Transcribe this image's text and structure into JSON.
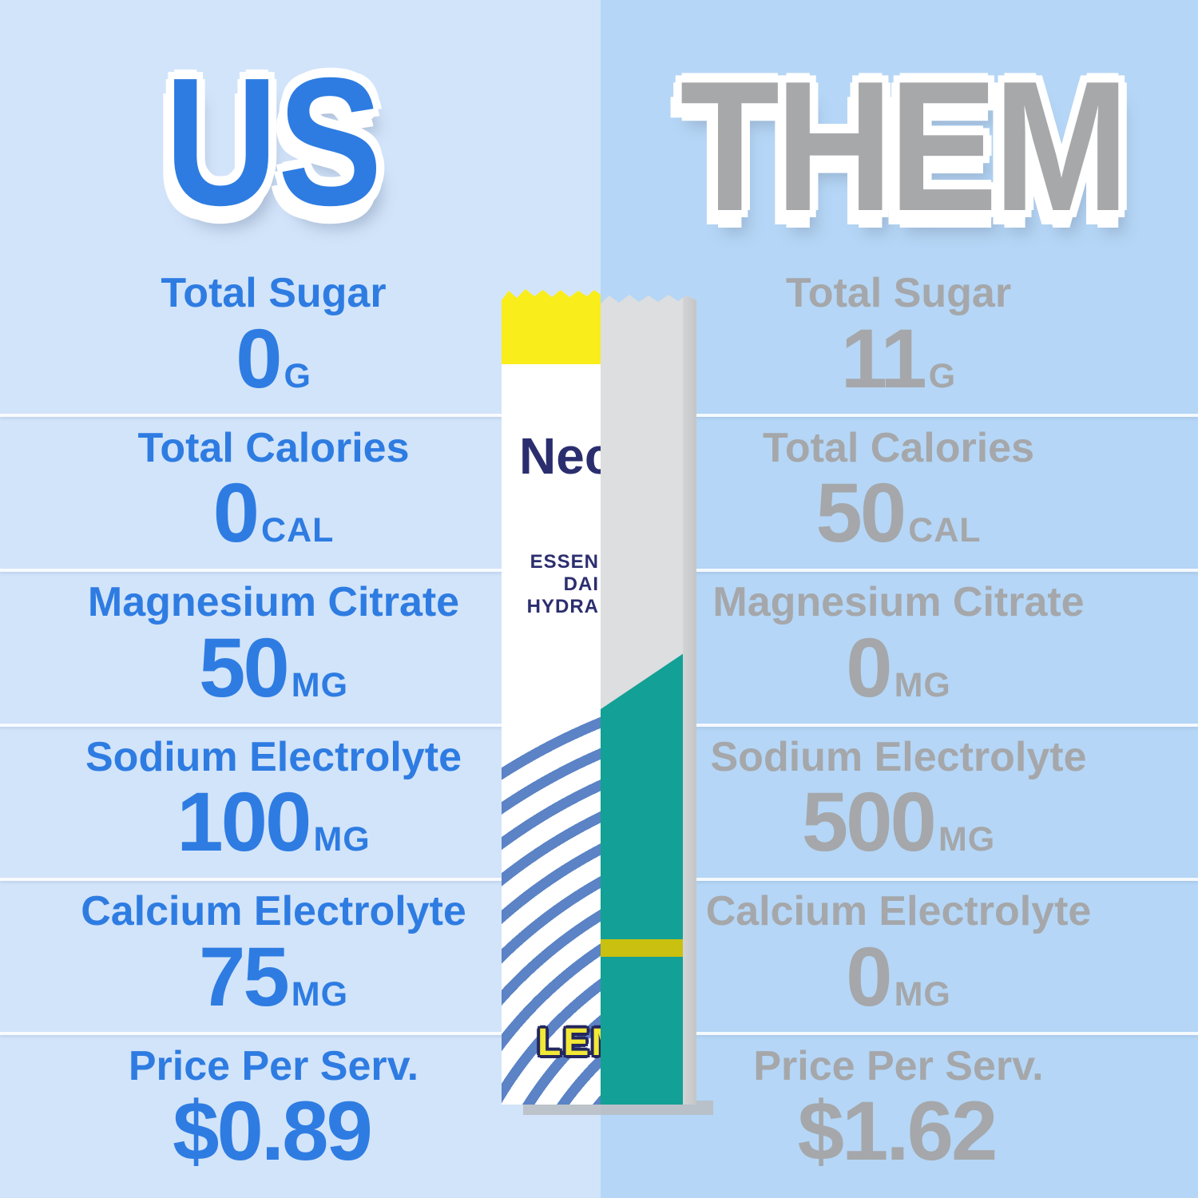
{
  "comparison": {
    "left": {
      "title": "US",
      "rows": [
        {
          "label": "Total Sugar",
          "value": "0",
          "unit": "G"
        },
        {
          "label": "Total Calories",
          "value": "0",
          "unit": "CAL"
        },
        {
          "label": "Magnesium Citrate",
          "value": "50",
          "unit": "MG"
        },
        {
          "label": "Sodium Electrolyte",
          "value": "100",
          "unit": "MG"
        },
        {
          "label": "Calcium Electrolyte",
          "value": "75",
          "unit": "MG"
        },
        {
          "label": "Price Per Serv.",
          "value": "$0.89",
          "unit": ""
        }
      ]
    },
    "right": {
      "title": "THEM",
      "rows": [
        {
          "label": "Total Sugar",
          "value": "11",
          "unit": "G"
        },
        {
          "label": "Total Calories",
          "value": "50",
          "unit": "CAL"
        },
        {
          "label": "Magnesium Citrate",
          "value": "0",
          "unit": "MG"
        },
        {
          "label": "Sodium Electrolyte",
          "value": "500",
          "unit": "MG"
        },
        {
          "label": "Calcium Electrolyte",
          "value": "0",
          "unit": "MG"
        },
        {
          "label": "Price Per Serv.",
          "value": "$1.62",
          "unit": ""
        }
      ]
    }
  },
  "packet": {
    "brand": "Nec",
    "label_lines": [
      "ESSEN",
      "DAI",
      "HYDRA"
    ],
    "flavor": "LEM"
  },
  "colors": {
    "us_accent": "#2e7ce2",
    "them_accent": "#a5a7aa",
    "background_left": "#d2e4fa",
    "background_right": "#b5d6f6",
    "packet_teal": "#13a096",
    "packet_yellow_band": "#f9ed1b",
    "wave_blue": "#5b83c5",
    "brand_navy": "#2b2e6e",
    "flavor_yellow": "#f2e836",
    "flavor_stripe_olive": "#c9c00f"
  },
  "chart_data": {
    "type": "table",
    "title": "US vs THEM hydration drink mix comparison",
    "categories": [
      "Total Sugar (G)",
      "Total Calories (CAL)",
      "Magnesium Citrate (MG)",
      "Sodium Electrolyte (MG)",
      "Calcium Electrolyte (MG)",
      "Price Per Serving ($)"
    ],
    "series": [
      {
        "name": "US",
        "values": [
          0,
          0,
          50,
          100,
          75,
          0.89
        ]
      },
      {
        "name": "THEM",
        "values": [
          11,
          50,
          0,
          500,
          0,
          1.62
        ]
      }
    ],
    "layout": {
      "orientation": "two-column comparison",
      "left_accent": "#2e7ce2",
      "right_accent": "#a5a7aa"
    }
  }
}
